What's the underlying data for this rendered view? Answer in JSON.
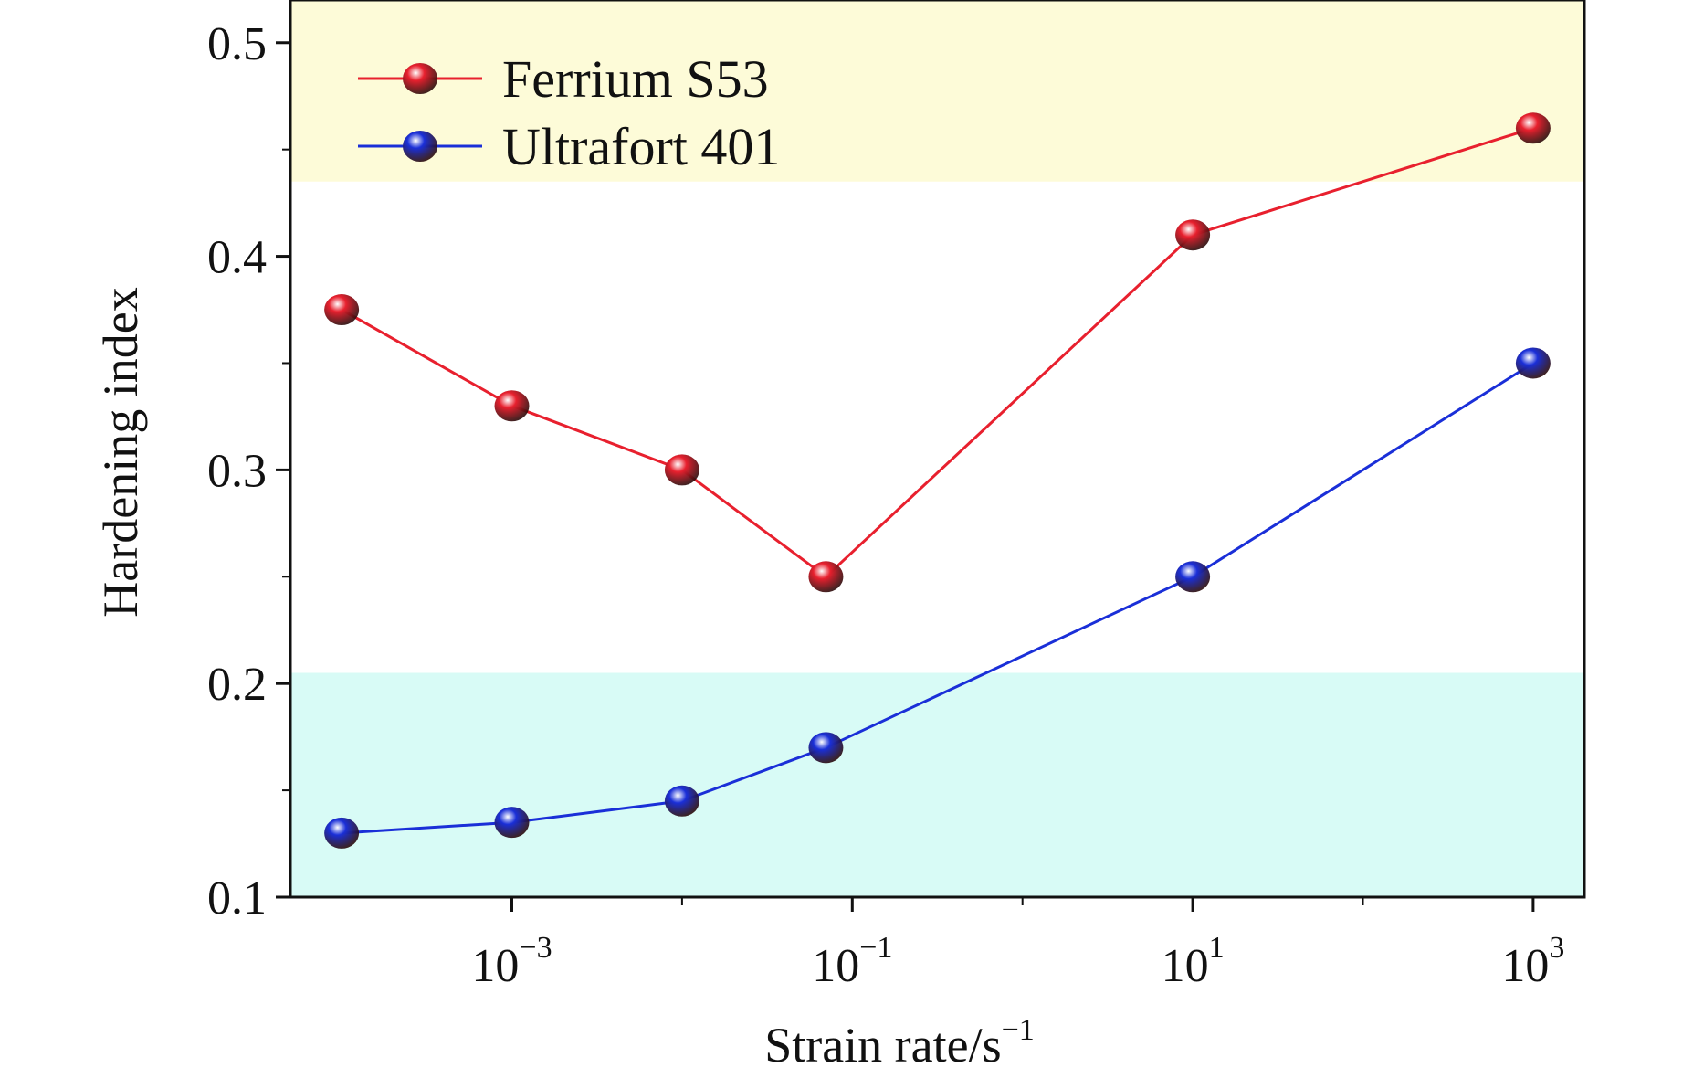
{
  "chart_data": {
    "type": "line",
    "title": "",
    "xlabel": "Strain rate/s",
    "xlabel_sup": "−1",
    "ylabel": "Hardening index",
    "x_scale": "log",
    "xlim": [
      5e-05,
      2000
    ],
    "ylim": [
      0.1,
      0.52
    ],
    "x_ticks": [
      {
        "value": 0.001,
        "base": "10",
        "exp": "−3"
      },
      {
        "value": 0.1,
        "base": "10",
        "exp": "−1"
      },
      {
        "value": 10,
        "base": "10",
        "exp": "1"
      },
      {
        "value": 1000,
        "base": "10",
        "exp": "3"
      }
    ],
    "y_ticks": [
      {
        "value": 0.1,
        "label": "0.1"
      },
      {
        "value": 0.2,
        "label": "0.2"
      },
      {
        "value": 0.3,
        "label": "0.3"
      },
      {
        "value": 0.4,
        "label": "0.4"
      },
      {
        "value": 0.5,
        "label": "0.5"
      }
    ],
    "grid": false,
    "legend_position": "top-left",
    "bands": [
      {
        "y0": 0.435,
        "y1": 0.52,
        "color": "#fdfbd8"
      },
      {
        "y0": 0.1,
        "y1": 0.205,
        "color": "#d8fbf6"
      }
    ],
    "series": [
      {
        "name": "Ferrium S53",
        "color": "#e8202e",
        "marker_color": "#e8202e",
        "x": [
          0.0001,
          0.001,
          0.01,
          0.07,
          10,
          1000
        ],
        "y": [
          0.375,
          0.33,
          0.3,
          0.25,
          0.41,
          0.46
        ]
      },
      {
        "name": "Ultrafort 401",
        "color": "#1a2fd8",
        "marker_color": "#1a2fd8",
        "x": [
          0.0001,
          0.001,
          0.01,
          0.07,
          10,
          1000
        ],
        "y": [
          0.13,
          0.135,
          0.145,
          0.17,
          0.25,
          0.35
        ]
      }
    ]
  }
}
